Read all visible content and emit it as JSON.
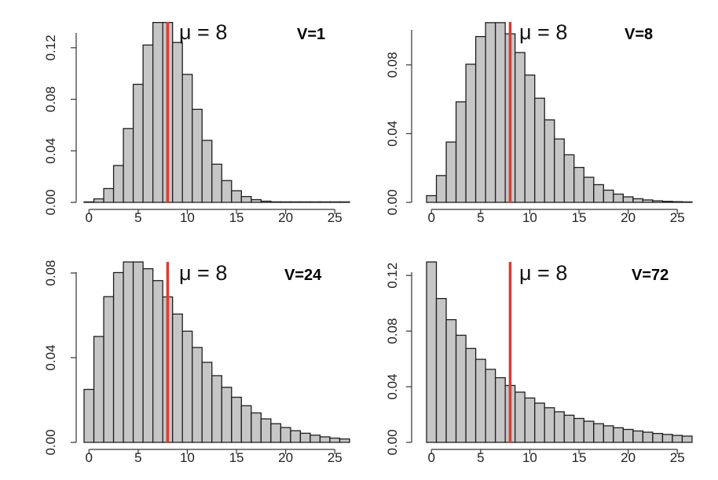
{
  "chart_data": [
    {
      "type": "bar",
      "title": "V=1",
      "mean_label": "μ = 8",
      "mean": 8,
      "x": [
        0,
        1,
        2,
        3,
        4,
        5,
        6,
        7,
        8,
        9,
        10,
        11,
        12,
        13,
        14,
        15,
        16,
        17,
        18,
        19,
        20,
        21,
        22,
        23,
        24,
        25,
        26
      ],
      "values": [
        0.0003,
        0.0027,
        0.0107,
        0.0286,
        0.0573,
        0.0916,
        0.1221,
        0.1396,
        0.1396,
        0.1241,
        0.0993,
        0.0722,
        0.0481,
        0.0296,
        0.0169,
        0.009,
        0.0045,
        0.0021,
        0.0009,
        0.0004,
        0.0002,
        0.0001,
        0,
        0,
        0,
        0,
        0
      ],
      "xticks": [
        0,
        5,
        10,
        15,
        20,
        25
      ],
      "yticks": [
        "0.00",
        "0.04",
        "0.08",
        "0.12"
      ],
      "xlim": [
        -0.5,
        26.5
      ],
      "ylim": [
        0,
        0.14
      ]
    },
    {
      "type": "bar",
      "title": "V=8",
      "mean_label": "μ = 8",
      "mean": 8,
      "x": [
        0,
        1,
        2,
        3,
        4,
        5,
        6,
        7,
        8,
        9,
        10,
        11,
        12,
        13,
        14,
        15,
        16,
        17,
        18,
        19,
        20,
        21,
        22,
        23,
        24,
        25,
        26
      ],
      "values": [
        0.0039,
        0.0156,
        0.0351,
        0.0585,
        0.0804,
        0.0965,
        0.1046,
        0.1046,
        0.0981,
        0.0872,
        0.0741,
        0.0606,
        0.048,
        0.0369,
        0.0277,
        0.0203,
        0.0146,
        0.0103,
        0.0071,
        0.0048,
        0.0032,
        0.0021,
        0.0014,
        0.0009,
        0.0006,
        0.0004,
        0.0002
      ],
      "xticks": [
        0,
        5,
        10,
        15,
        20,
        25
      ],
      "yticks": [
        "0.00",
        "0.04",
        "0.08"
      ],
      "xlim": [
        -0.5,
        26.5
      ],
      "ylim": [
        0,
        0.105
      ]
    },
    {
      "type": "bar",
      "title": "V=24",
      "mean_label": "μ = 8",
      "mean": 8,
      "x": [
        0,
        1,
        2,
        3,
        4,
        5,
        6,
        7,
        8,
        9,
        10,
        11,
        12,
        13,
        14,
        15,
        16,
        17,
        18,
        19,
        20,
        21,
        22,
        23,
        24,
        25,
        26
      ],
      "values": [
        0.025,
        0.05,
        0.0688,
        0.0802,
        0.0852,
        0.0852,
        0.082,
        0.0764,
        0.0687,
        0.0606,
        0.0525,
        0.0448,
        0.0378,
        0.0315,
        0.026,
        0.0213,
        0.0173,
        0.0139,
        0.0111,
        0.0088,
        0.007,
        0.0055,
        0.0043,
        0.0034,
        0.0026,
        0.002,
        0.0016
      ],
      "xticks": [
        0,
        5,
        10,
        15,
        20,
        25
      ],
      "yticks": [
        "0.00",
        "0.04",
        "0.08"
      ],
      "xlim": [
        -0.5,
        26.5
      ],
      "ylim": [
        0,
        0.0852
      ]
    },
    {
      "type": "bar",
      "title": "V=72",
      "mean_label": "μ = 8",
      "mean": 8,
      "x": [
        0,
        1,
        2,
        3,
        4,
        5,
        6,
        7,
        8,
        9,
        10,
        11,
        12,
        13,
        14,
        15,
        16,
        17,
        18,
        19,
        20,
        21,
        22,
        23,
        24,
        25,
        26
      ],
      "values": [
        0.1297,
        0.1034,
        0.0882,
        0.077,
        0.0675,
        0.0597,
        0.0525,
        0.0465,
        0.0409,
        0.0361,
        0.0319,
        0.0282,
        0.0249,
        0.022,
        0.0195,
        0.0172,
        0.0152,
        0.0134,
        0.0119,
        0.0105,
        0.0093,
        0.0082,
        0.0073,
        0.0064,
        0.0057,
        0.005,
        0.0045
      ],
      "xticks": [
        0,
        5,
        10,
        15,
        20,
        25
      ],
      "yticks": [
        "0.00",
        "0.04",
        "0.08",
        "0.12"
      ],
      "xlim": [
        -0.5,
        26.5
      ],
      "ylim": [
        0,
        0.1297
      ]
    }
  ]
}
